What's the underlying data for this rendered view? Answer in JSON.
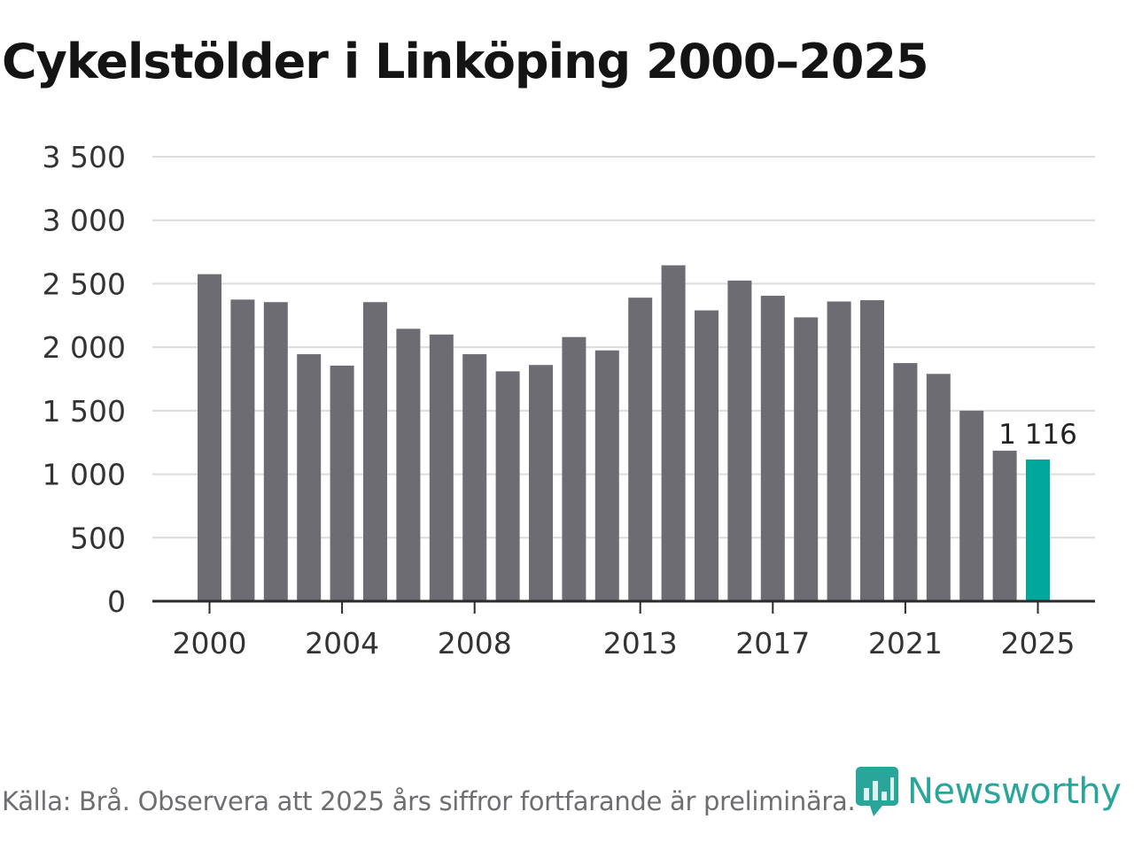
{
  "title": "Cykelstölder i Linköping 2000–2025",
  "footer": {
    "source": "Källa: Brå. Observera att 2025 års siffror fortfarande är preliminära.",
    "brand": "Newsworthy"
  },
  "colors": {
    "bar": "#6d6c73",
    "highlight": "#00a89c",
    "grid": "#dcdcdc",
    "axis": "#2b2b2b",
    "text": "#333333",
    "brand": "#2aa59a"
  },
  "chart_data": {
    "type": "bar",
    "title": "Cykelstölder i Linköping 2000–2025",
    "xlabel": "",
    "ylabel": "",
    "ylim": [
      0,
      3500
    ],
    "grid": true,
    "categories": [
      "2000",
      "2001",
      "2002",
      "2003",
      "2004",
      "2005",
      "2006",
      "2007",
      "2008",
      "2009",
      "2010",
      "2011",
      "2012",
      "2013",
      "2014",
      "2015",
      "2016",
      "2017",
      "2018",
      "2019",
      "2020",
      "2021",
      "2022",
      "2023",
      "2024",
      "2025"
    ],
    "values": [
      2575,
      2375,
      2355,
      1945,
      1855,
      2355,
      2145,
      2100,
      1945,
      1810,
      1860,
      2080,
      1975,
      2390,
      2645,
      2290,
      2525,
      2405,
      2235,
      2360,
      2370,
      1875,
      1790,
      1500,
      1185,
      1116
    ],
    "highlight_index": 25,
    "highlight_label": "1 116",
    "yticks": [
      0,
      500,
      1000,
      1500,
      2000,
      2500,
      3000,
      3500
    ],
    "ytick_labels": [
      "0",
      "500",
      "1 000",
      "1 500",
      "2 000",
      "2 500",
      "3 000",
      "3 500"
    ],
    "xtick_labels": [
      "2000",
      "2004",
      "2008",
      "2013",
      "2017",
      "2021",
      "2025"
    ]
  }
}
